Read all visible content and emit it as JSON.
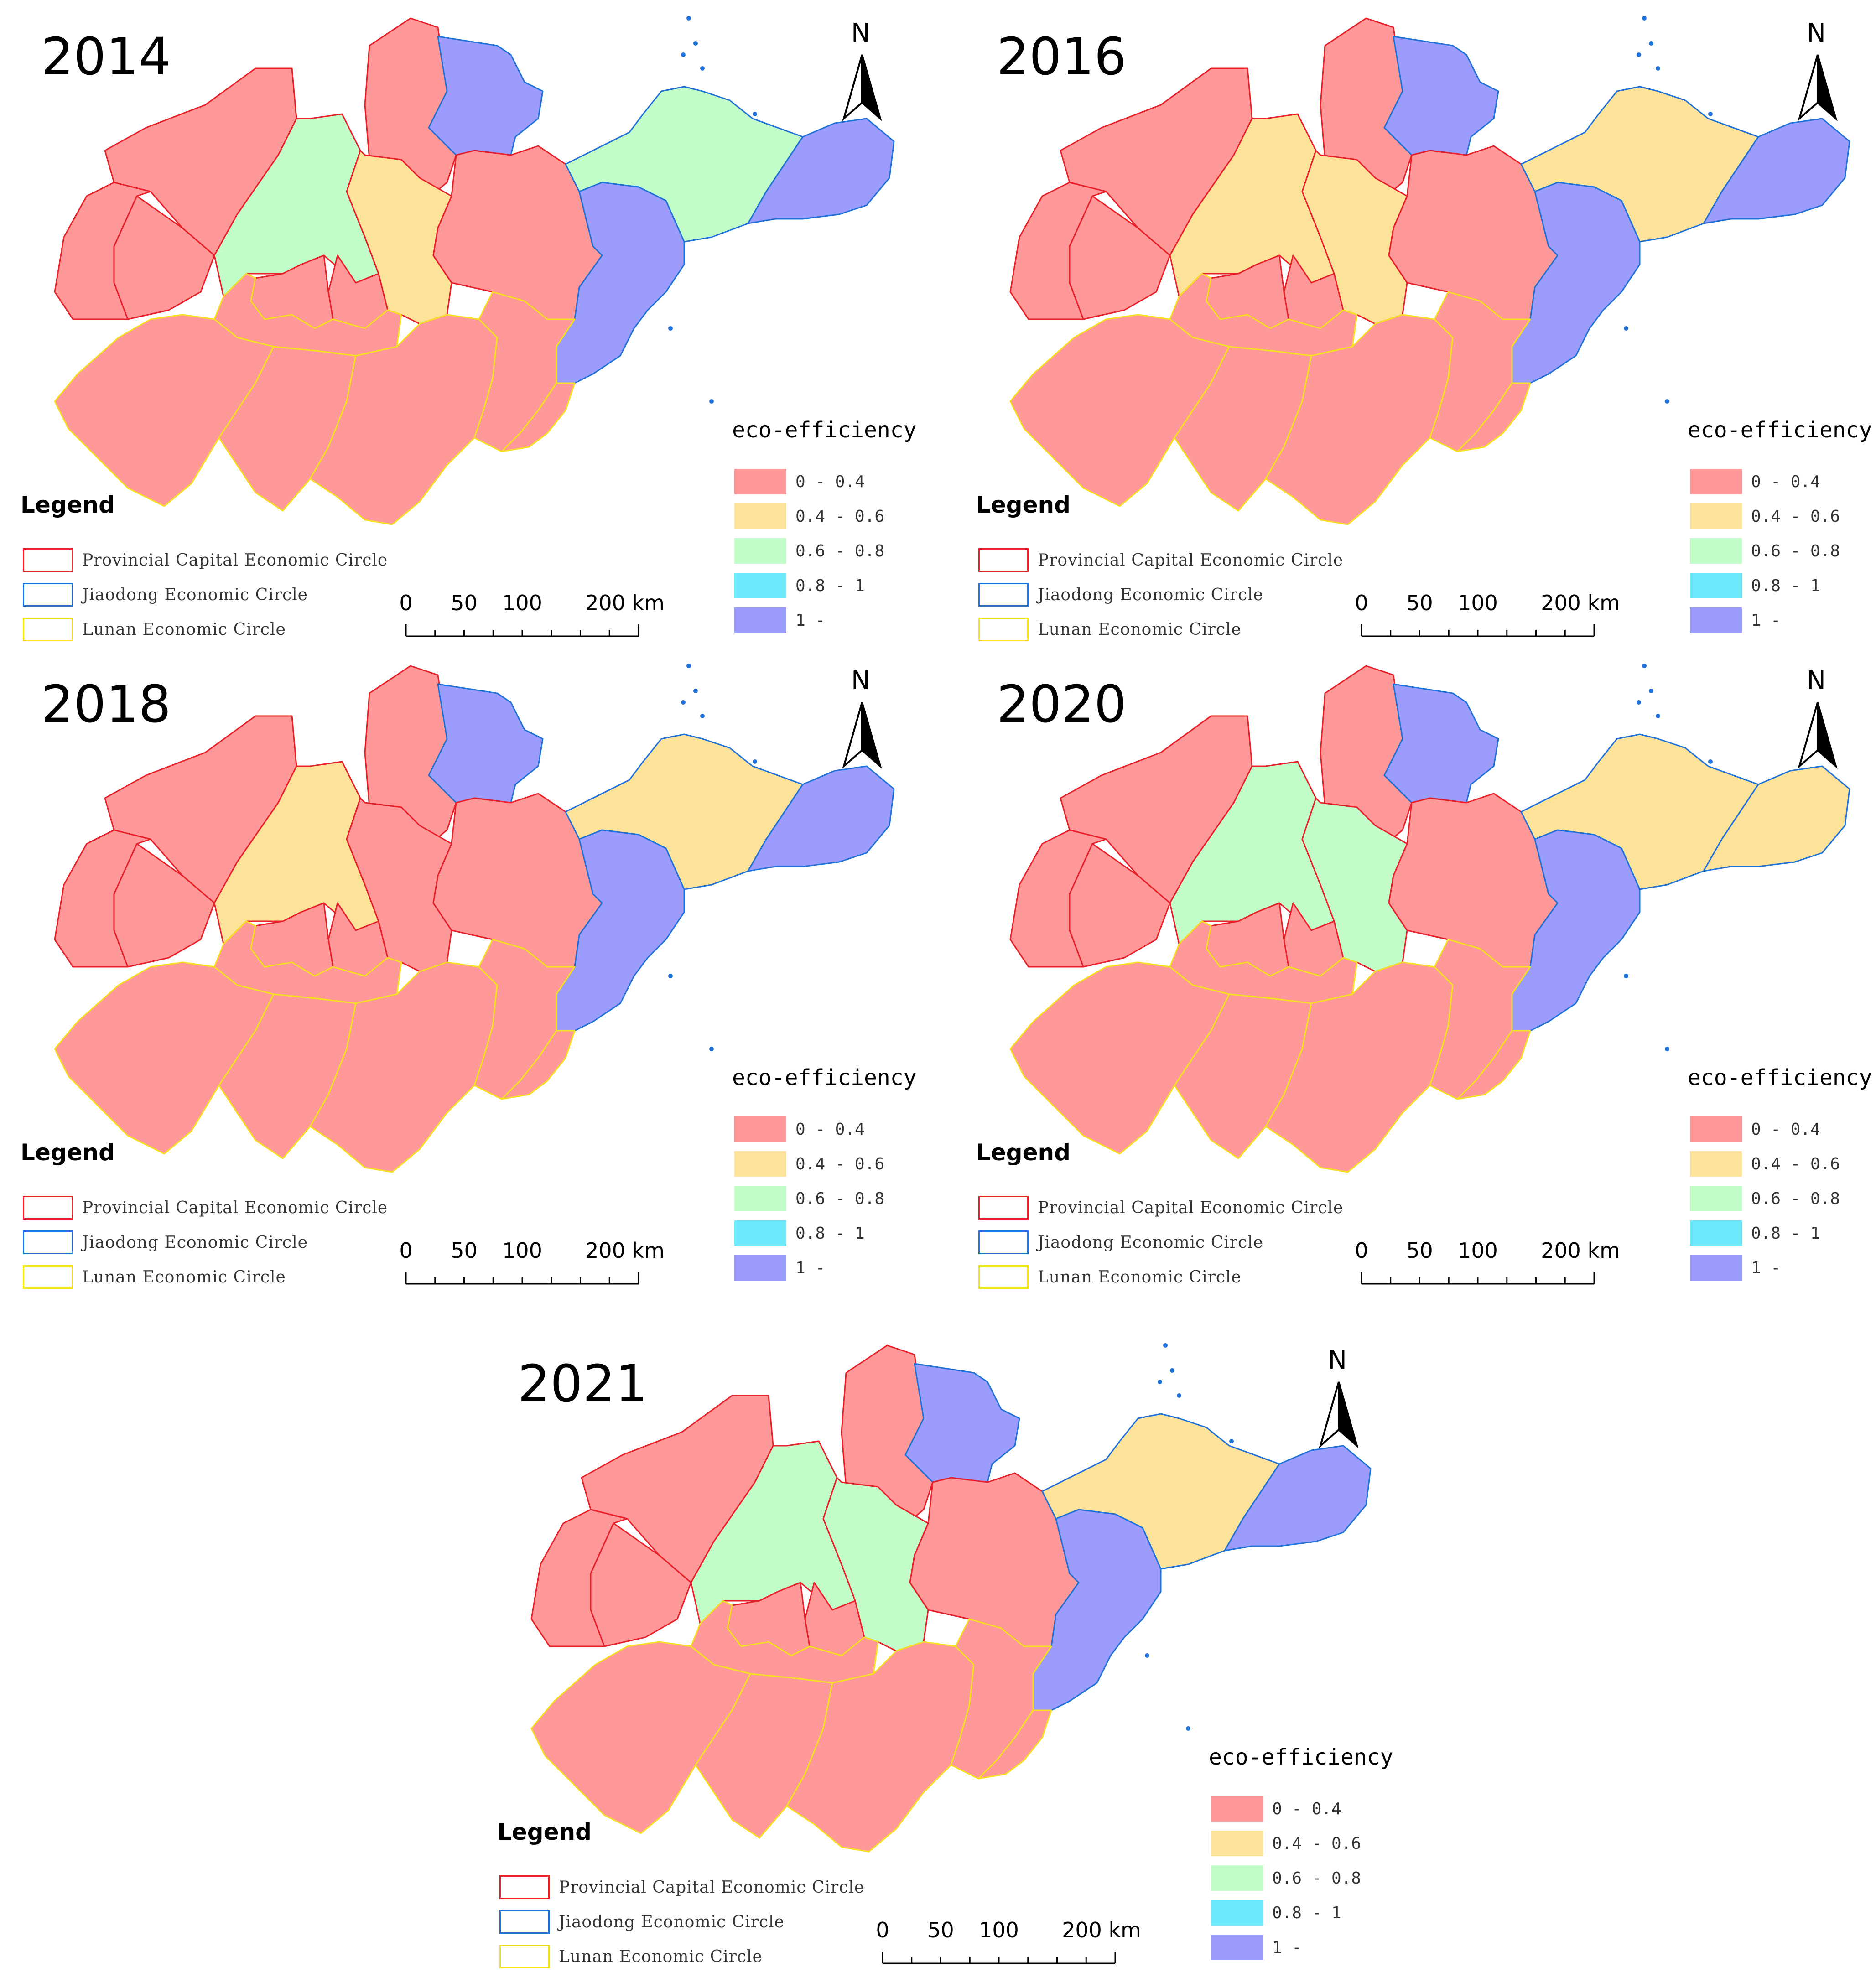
{
  "colors": {
    "class_0": "#fe9899",
    "class_1": "#fde299",
    "class_2": "#c1fcc9",
    "class_3": "#6de8fb",
    "class_4": "#9c9cfd",
    "provincial_capital": "#e8202a",
    "jiaodong": "#2071d8",
    "lunan": "#f5e021"
  },
  "legend": {
    "title": "Legend",
    "circles": [
      "Provincial Capital Economic Circle",
      "Jiaodong Economic Circle",
      "Lunan Economic Circle"
    ]
  },
  "classification": {
    "title": "eco-efficiency",
    "classes": [
      "0 - 0.4",
      "0.4 - 0.6",
      "0.6 - 0.8",
      "0.8 - 1",
      "1 -"
    ]
  },
  "north_arrow": {
    "label": "N"
  },
  "scale_bar": {
    "labels": [
      "0",
      "50",
      "100",
      "200 km"
    ],
    "values_km": [
      0,
      50,
      100,
      200
    ]
  },
  "panels": [
    {
      "year": "2014",
      "region_classes": {
        "W1": 0,
        "W2": 0,
        "W3": 0,
        "N1": 0,
        "DZ": 2,
        "C1": 0,
        "C2": 0,
        "BZ": 4,
        "ZB": 1,
        "WF": 0,
        "YT": 2,
        "WH": 4,
        "QD": 4,
        "TA": 0,
        "SW1": 0,
        "SW2": 0,
        "S1": 0,
        "S2": 0,
        "RZ": 0
      }
    },
    {
      "year": "2016",
      "region_classes": {
        "W1": 0,
        "W2": 0,
        "W3": 0,
        "N1": 0,
        "DZ": 1,
        "C1": 0,
        "C2": 0,
        "BZ": 4,
        "ZB": 1,
        "WF": 0,
        "YT": 1,
        "WH": 4,
        "QD": 4,
        "TA": 0,
        "SW1": 0,
        "SW2": 0,
        "S1": 0,
        "S2": 0,
        "RZ": 0
      }
    },
    {
      "year": "2018",
      "region_classes": {
        "W1": 0,
        "W2": 0,
        "W3": 0,
        "N1": 0,
        "DZ": 1,
        "C1": 0,
        "C2": 0,
        "BZ": 4,
        "ZB": 0,
        "WF": 0,
        "YT": 1,
        "WH": 4,
        "QD": 4,
        "TA": 0,
        "SW1": 0,
        "SW2": 0,
        "S1": 0,
        "S2": 0,
        "RZ": 0
      }
    },
    {
      "year": "2020",
      "region_classes": {
        "W1": 0,
        "W2": 0,
        "W3": 0,
        "N1": 0,
        "DZ": 2,
        "C1": 0,
        "C2": 0,
        "BZ": 4,
        "ZB": 2,
        "WF": 0,
        "YT": 1,
        "WH": 1,
        "QD": 4,
        "TA": 0,
        "SW1": 0,
        "SW2": 0,
        "S1": 0,
        "S2": 0,
        "RZ": 0
      }
    },
    {
      "year": "2021",
      "region_classes": {
        "W1": 0,
        "W2": 0,
        "W3": 0,
        "N1": 0,
        "DZ": 2,
        "C1": 0,
        "C2": 0,
        "BZ": 4,
        "ZB": 2,
        "WF": 0,
        "YT": 1,
        "WH": 4,
        "QD": 4,
        "TA": 0,
        "SW1": 0,
        "SW2": 0,
        "S1": 0,
        "S2": 0,
        "RZ": 0
      }
    }
  ]
}
